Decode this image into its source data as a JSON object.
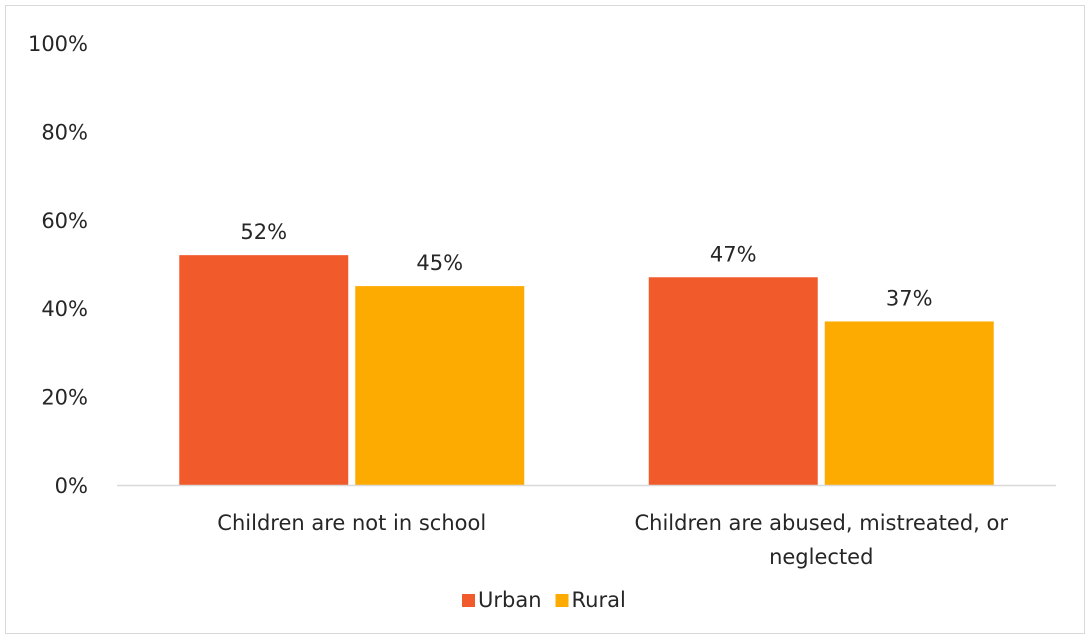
{
  "chart_data": {
    "type": "bar",
    "categories": [
      [
        "Children are not in school"
      ],
      [
        "Children are abused, mistreated, or",
        "neglected"
      ]
    ],
    "series": [
      {
        "name": "Urban",
        "values": [
          52,
          47
        ],
        "color": "#f15a2b",
        "labels": [
          "52%",
          "47%"
        ]
      },
      {
        "name": "Rural",
        "values": [
          45,
          37
        ],
        "color": "#fdab00",
        "labels": [
          "45%",
          "37%"
        ]
      }
    ],
    "ylim": [
      0,
      100
    ],
    "yticks": [
      0,
      20,
      40,
      60,
      80,
      100
    ],
    "ytick_labels": [
      "0%",
      "20%",
      "40%",
      "60%",
      "80%",
      "100%"
    ],
    "legend_position": "bottom",
    "grid": false,
    "axis_color": "#d9d9d9"
  }
}
